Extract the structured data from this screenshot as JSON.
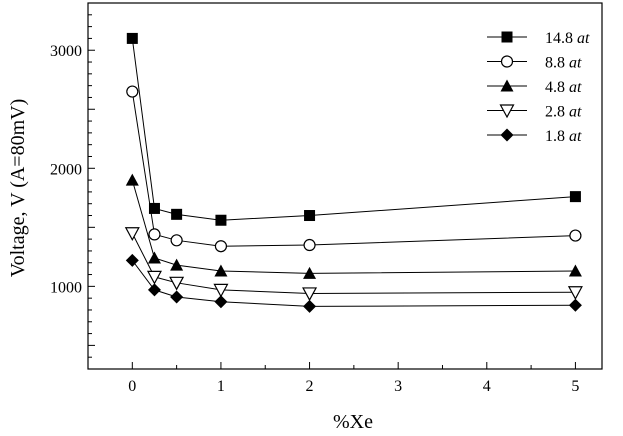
{
  "chart_data": {
    "type": "line",
    "title": "",
    "xlabel": "%Xe",
    "ylabel": "Voltage, V (A=80mV)",
    "xlim": [
      -0.5,
      5.3
    ],
    "ylim": [
      300,
      3400
    ],
    "x_ticks": [
      0,
      1,
      2,
      3,
      4,
      5
    ],
    "x_tick_labels": [
      "0",
      "1",
      "2",
      "3",
      "4",
      "5"
    ],
    "y_ticks": [
      1000,
      2000,
      3000
    ],
    "y_tick_labels": [
      "1000",
      "2000",
      "3000"
    ],
    "grid": false,
    "legend_position": "top-right",
    "x": [
      0,
      0.25,
      0.5,
      1,
      2,
      5
    ],
    "series": [
      {
        "name": "14.8",
        "unit": "at",
        "marker": "square-filled",
        "values": [
          3100,
          1660,
          1610,
          1560,
          1600,
          1760
        ]
      },
      {
        "name": "8.8",
        "unit": "at",
        "marker": "circle-open",
        "values": [
          2650,
          1440,
          1390,
          1340,
          1350,
          1430
        ]
      },
      {
        "name": "4.8",
        "unit": "at",
        "marker": "triangle-up-filled",
        "values": [
          1900,
          1240,
          1180,
          1130,
          1110,
          1130
        ]
      },
      {
        "name": "2.8",
        "unit": "at",
        "marker": "triangle-down-open",
        "values": [
          1450,
          1080,
          1030,
          970,
          940,
          950
        ]
      },
      {
        "name": "1.8",
        "unit": "at",
        "marker": "diamond-filled",
        "values": [
          1220,
          970,
          910,
          870,
          830,
          840
        ]
      }
    ]
  }
}
